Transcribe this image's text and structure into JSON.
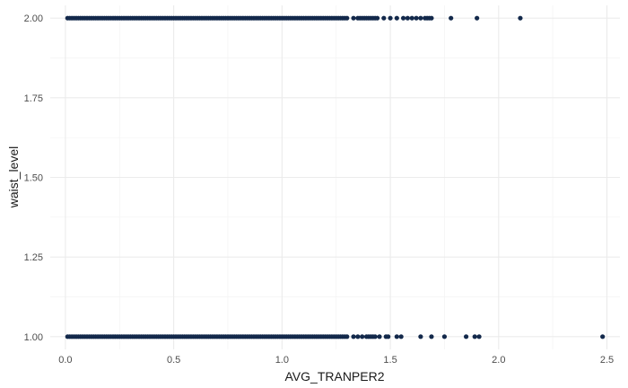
{
  "chart_data": {
    "type": "scatter",
    "title": "",
    "xlabel": "AVG_TRANPER2",
    "ylabel": "waist_level",
    "xlim": [
      -0.07,
      2.56
    ],
    "ylim": [
      0.96,
      2.04
    ],
    "x_ticks": [
      0.0,
      0.5,
      1.0,
      1.5,
      2.0,
      2.5
    ],
    "x_tick_labels": [
      "0.0",
      "0.5",
      "1.0",
      "1.5",
      "2.0",
      "2.5"
    ],
    "y_ticks": [
      1.0,
      1.25,
      1.5,
      1.75,
      2.0
    ],
    "y_tick_labels": [
      "1.00",
      "1.25",
      "1.50",
      "1.75",
      "2.00"
    ],
    "grid": true,
    "legend": "none",
    "point_color": "#13294b",
    "series": [
      {
        "y": 2.0,
        "x": [
          0.01,
          0.02,
          0.03,
          0.04,
          0.05,
          0.06,
          0.07,
          0.08,
          0.09,
          0.1,
          0.11,
          0.12,
          0.13,
          0.14,
          0.15,
          0.16,
          0.17,
          0.18,
          0.19,
          0.2,
          0.21,
          0.22,
          0.23,
          0.24,
          0.25,
          0.26,
          0.27,
          0.28,
          0.29,
          0.3,
          0.31,
          0.32,
          0.33,
          0.34,
          0.35,
          0.36,
          0.37,
          0.38,
          0.39,
          0.4,
          0.41,
          0.42,
          0.43,
          0.44,
          0.45,
          0.46,
          0.47,
          0.48,
          0.49,
          0.5,
          0.51,
          0.52,
          0.53,
          0.54,
          0.55,
          0.56,
          0.57,
          0.58,
          0.59,
          0.6,
          0.61,
          0.62,
          0.63,
          0.64,
          0.65,
          0.66,
          0.67,
          0.68,
          0.69,
          0.7,
          0.71,
          0.72,
          0.73,
          0.74,
          0.75,
          0.76,
          0.77,
          0.78,
          0.79,
          0.8,
          0.81,
          0.82,
          0.83,
          0.84,
          0.85,
          0.86,
          0.87,
          0.88,
          0.89,
          0.9,
          0.91,
          0.92,
          0.93,
          0.94,
          0.95,
          0.96,
          0.97,
          0.98,
          0.99,
          1.0,
          1.01,
          1.02,
          1.03,
          1.04,
          1.05,
          1.06,
          1.07,
          1.08,
          1.09,
          1.1,
          1.11,
          1.12,
          1.13,
          1.14,
          1.15,
          1.16,
          1.17,
          1.18,
          1.19,
          1.2,
          1.21,
          1.22,
          1.23,
          1.24,
          1.25,
          1.26,
          1.27,
          1.28,
          1.29,
          1.3,
          1.33,
          1.35,
          1.36,
          1.37,
          1.38,
          1.39,
          1.4,
          1.41,
          1.42,
          1.43,
          1.44,
          1.47,
          1.5,
          1.53,
          1.56,
          1.58,
          1.6,
          1.62,
          1.64,
          1.66,
          1.67,
          1.68,
          1.69,
          1.78,
          1.9,
          2.1
        ]
      },
      {
        "y": 1.0,
        "x": [
          0.01,
          0.02,
          0.03,
          0.04,
          0.05,
          0.06,
          0.07,
          0.08,
          0.09,
          0.1,
          0.11,
          0.12,
          0.13,
          0.14,
          0.15,
          0.16,
          0.17,
          0.18,
          0.19,
          0.2,
          0.21,
          0.22,
          0.23,
          0.24,
          0.25,
          0.26,
          0.27,
          0.28,
          0.29,
          0.3,
          0.31,
          0.32,
          0.33,
          0.34,
          0.35,
          0.36,
          0.37,
          0.38,
          0.39,
          0.4,
          0.41,
          0.42,
          0.43,
          0.44,
          0.45,
          0.46,
          0.47,
          0.48,
          0.49,
          0.5,
          0.51,
          0.52,
          0.53,
          0.54,
          0.55,
          0.56,
          0.57,
          0.58,
          0.59,
          0.6,
          0.61,
          0.62,
          0.63,
          0.64,
          0.65,
          0.66,
          0.67,
          0.68,
          0.69,
          0.7,
          0.71,
          0.72,
          0.73,
          0.74,
          0.75,
          0.76,
          0.77,
          0.78,
          0.79,
          0.8,
          0.81,
          0.82,
          0.83,
          0.84,
          0.85,
          0.86,
          0.87,
          0.88,
          0.89,
          0.9,
          0.91,
          0.92,
          0.93,
          0.94,
          0.95,
          0.96,
          0.97,
          0.98,
          0.99,
          1.0,
          1.01,
          1.02,
          1.03,
          1.04,
          1.05,
          1.06,
          1.07,
          1.08,
          1.09,
          1.1,
          1.11,
          1.12,
          1.13,
          1.14,
          1.15,
          1.16,
          1.17,
          1.18,
          1.19,
          1.2,
          1.21,
          1.22,
          1.23,
          1.24,
          1.25,
          1.26,
          1.27,
          1.28,
          1.29,
          1.3,
          1.33,
          1.35,
          1.37,
          1.39,
          1.4,
          1.41,
          1.42,
          1.43,
          1.45,
          1.48,
          1.49,
          1.53,
          1.55,
          1.64,
          1.69,
          1.75,
          1.85,
          1.89,
          1.91,
          2.48
        ]
      }
    ]
  }
}
